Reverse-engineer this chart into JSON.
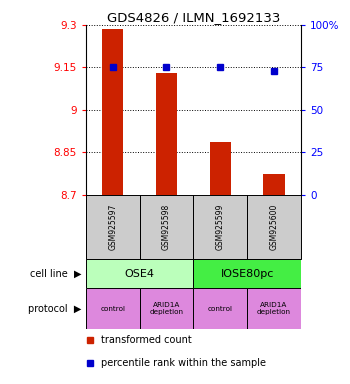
{
  "title": "GDS4826 / ILMN_1692133",
  "samples": [
    "GSM925597",
    "GSM925598",
    "GSM925599",
    "GSM925600"
  ],
  "bar_values": [
    9.285,
    9.13,
    8.885,
    8.775
  ],
  "percentile_values": [
    75,
    75,
    75,
    73
  ],
  "ylim_left": [
    8.7,
    9.3
  ],
  "ylim_right": [
    0,
    100
  ],
  "yticks_left": [
    8.7,
    8.85,
    9.0,
    9.15,
    9.3
  ],
  "yticks_right": [
    0,
    25,
    50,
    75,
    100
  ],
  "ytick_labels_left": [
    "8.7",
    "8.85",
    "9",
    "9.15",
    "9.3"
  ],
  "ytick_labels_right": [
    "0",
    "25",
    "50",
    "75",
    "100%"
  ],
  "bar_color": "#cc2200",
  "dot_color": "#0000cc",
  "cell_line_labels": [
    "OSE4",
    "IOSE80pc"
  ],
  "cell_line_colors": [
    "#bbffbb",
    "#44ee44"
  ],
  "cell_line_spans": [
    [
      0,
      2
    ],
    [
      2,
      4
    ]
  ],
  "protocol_labels": [
    "control",
    "ARID1A\ndepletion",
    "control",
    "ARID1A\ndepletion"
  ],
  "protocol_color": "#dd88dd",
  "legend_red_label": "transformed count",
  "legend_blue_label": "percentile rank within the sample",
  "cell_line_row_label": "cell line",
  "protocol_row_label": "protocol",
  "sample_box_color": "#cccccc",
  "grid_color": "#888888",
  "bar_width": 0.4
}
